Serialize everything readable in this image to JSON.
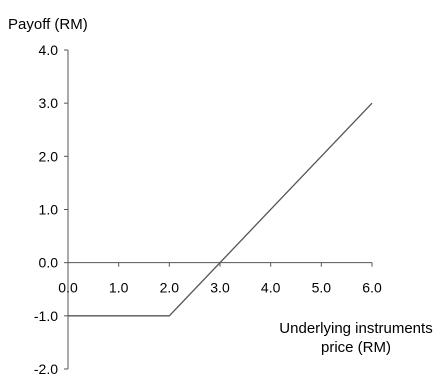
{
  "chart_data": {
    "type": "line",
    "ylabel": "Payoff (RM)",
    "xlabel_lines": [
      "Underlying instruments",
      "price (RM)"
    ],
    "xlim": [
      0,
      6
    ],
    "ylim": [
      -2,
      4
    ],
    "x_ticks": [
      "0.0",
      "1.0",
      "2.0",
      "3.0",
      "4.0",
      "5.0",
      "6.0"
    ],
    "y_ticks": [
      "4.0",
      "3.0",
      "2.0",
      "1.0",
      "0.0",
      "-1.0",
      "-2.0"
    ],
    "series": [
      {
        "x": [
          0,
          2,
          6
        ],
        "y": [
          -1,
          -1,
          3
        ]
      }
    ],
    "grid": false,
    "line_color": "#555555",
    "axis_color": "#555555"
  }
}
